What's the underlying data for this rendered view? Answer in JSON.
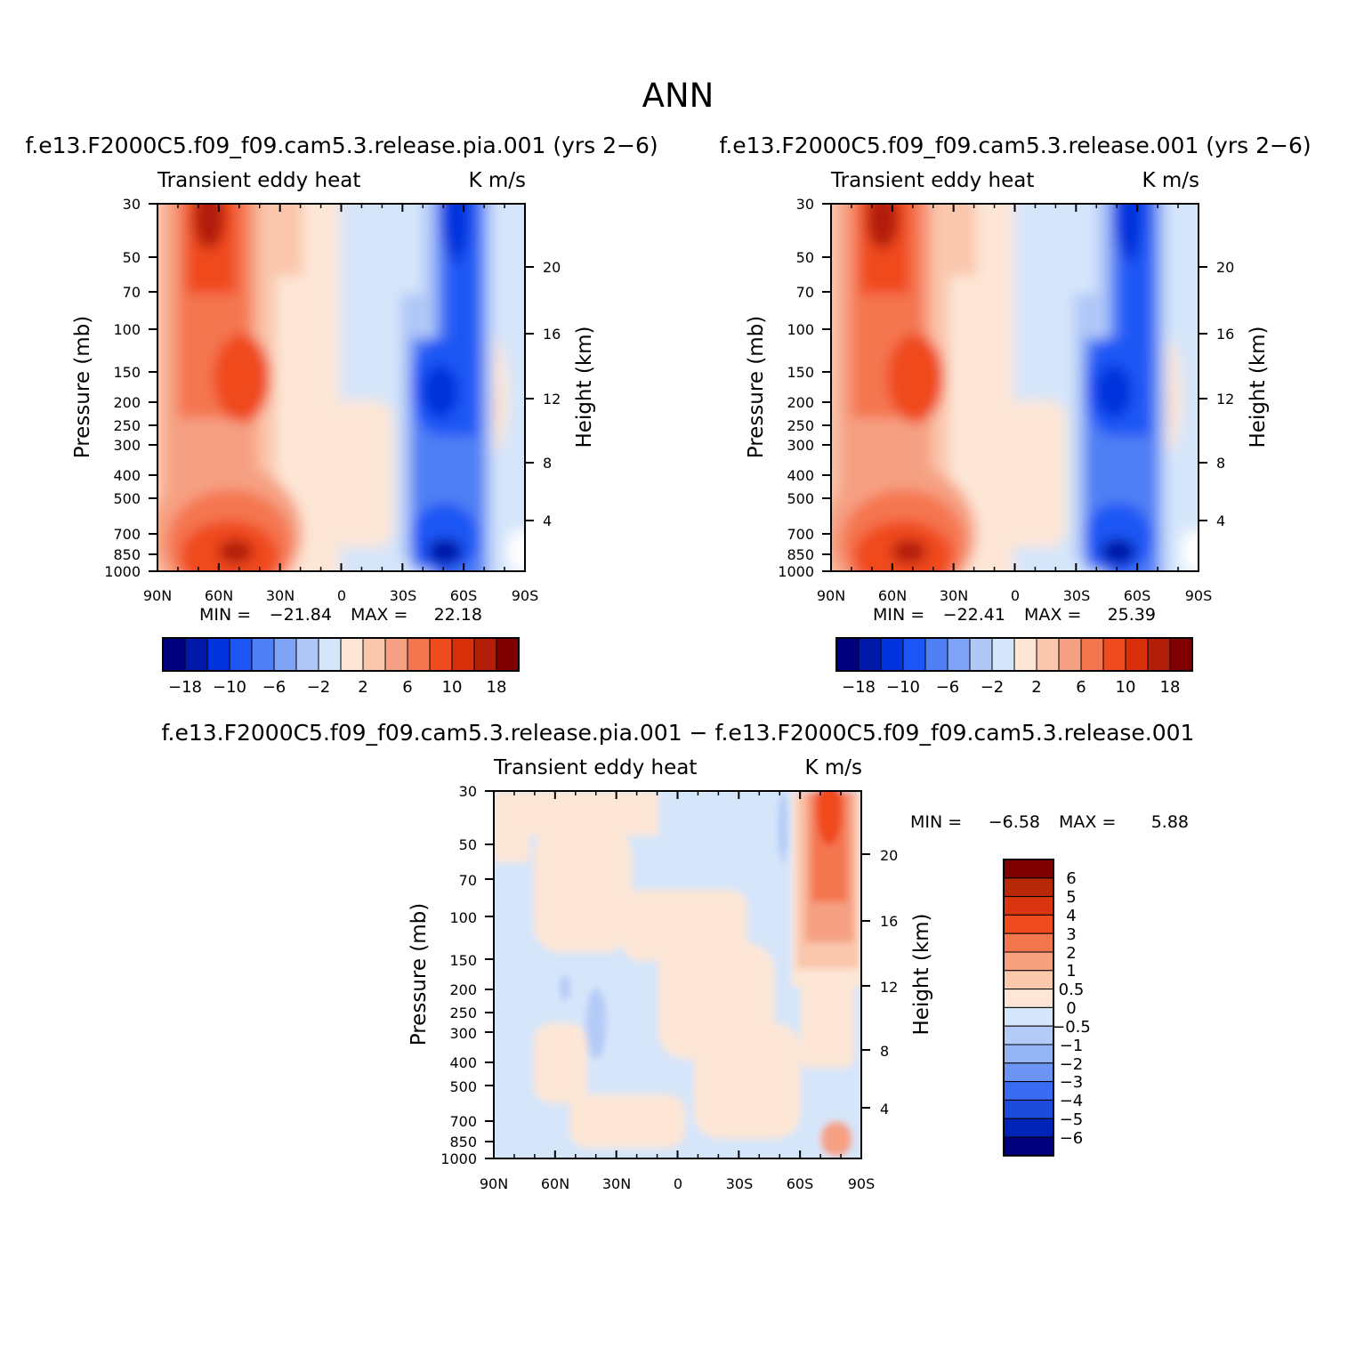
{
  "figure_title": "ANN",
  "colors": {
    "ctrl_palette": [
      "#00007f",
      "#0019a8",
      "#0033dc",
      "#1e56f5",
      "#4f7ff5",
      "#7fa4f6",
      "#b0c8f7",
      "#d6e6fa",
      "#fde6d5",
      "#fac6ac",
      "#f6a083",
      "#f4764f",
      "#f04a1f",
      "#d92f0b",
      "#b21e08",
      "#7f0000"
    ],
    "diff_palette": [
      "#00007f",
      "#0024b8",
      "#1d4cdd",
      "#3a6bf3",
      "#6c94f5",
      "#94b4f6",
      "#b5cbf7",
      "#d6e6fa",
      "#fde6d5",
      "#fbc9ae",
      "#f6a080",
      "#f4764f",
      "#f04a1f",
      "#d93510",
      "#b72808",
      "#7f0000"
    ]
  },
  "chart_data": [
    {
      "type": "contour",
      "title": "f.e13.F2000C5.f09_f09.cam5.3.release.pia.001 (yrs 2−6)",
      "left_string": "Transient eddy heat",
      "right_string": "K m/s",
      "ylabel": "Pressure (mb)",
      "ylabel_right": "Height (km)",
      "x_ticks": [
        "90N",
        "60N",
        "30N",
        "0",
        "30S",
        "60S",
        "90S"
      ],
      "y_ticks": [
        "30",
        "50",
        "70",
        "100",
        "150",
        "200",
        "250",
        "300",
        "400",
        "500",
        "700",
        "850",
        "1000"
      ],
      "y_ticks_right": [
        "20",
        "16",
        "12",
        "8",
        "4"
      ],
      "min_label": "MIN =",
      "min_value": "−21.84",
      "max_label": "MAX =",
      "max_value": "22.18",
      "colorbar_labels": [
        "−18",
        "−10",
        "−6",
        "−2",
        "2",
        "6",
        "10",
        "18"
      ]
    },
    {
      "type": "contour",
      "title": "f.e13.F2000C5.f09_f09.cam5.3.release.001 (yrs 2−6)",
      "left_string": "Transient eddy heat",
      "right_string": "K m/s",
      "ylabel": "Pressure (mb)",
      "ylabel_right": "Height (km)",
      "x_ticks": [
        "90N",
        "60N",
        "30N",
        "0",
        "30S",
        "60S",
        "90S"
      ],
      "y_ticks": [
        "30",
        "50",
        "70",
        "100",
        "150",
        "200",
        "250",
        "300",
        "400",
        "500",
        "700",
        "850",
        "1000"
      ],
      "y_ticks_right": [
        "20",
        "16",
        "12",
        "8",
        "4"
      ],
      "min_label": "MIN =",
      "min_value": "−22.41",
      "max_label": "MAX =",
      "max_value": "25.39",
      "colorbar_labels": [
        "−18",
        "−10",
        "−6",
        "−2",
        "2",
        "6",
        "10",
        "18"
      ]
    },
    {
      "type": "contour",
      "title": "f.e13.F2000C5.f09_f09.cam5.3.release.pia.001 − f.e13.F2000C5.f09_f09.cam5.3.release.001",
      "left_string": "Transient eddy heat",
      "right_string": "K m/s",
      "ylabel": "Pressure (mb)",
      "ylabel_right": "Height (km)",
      "x_ticks": [
        "90N",
        "60N",
        "30N",
        "0",
        "30S",
        "60S",
        "90S"
      ],
      "y_ticks": [
        "30",
        "50",
        "70",
        "100",
        "150",
        "200",
        "250",
        "300",
        "400",
        "500",
        "700",
        "850",
        "1000"
      ],
      "y_ticks_right": [
        "20",
        "16",
        "12",
        "8",
        "4"
      ],
      "min_label": "MIN =",
      "min_value": "−6.58",
      "max_label": "MAX =",
      "max_value": "5.88",
      "colorbar_labels": [
        "6",
        "5",
        "4",
        "3",
        "2",
        "1",
        "0.5",
        "0",
        "−0.5",
        "−1",
        "−2",
        "−3",
        "−4",
        "−5",
        "−6"
      ]
    }
  ]
}
